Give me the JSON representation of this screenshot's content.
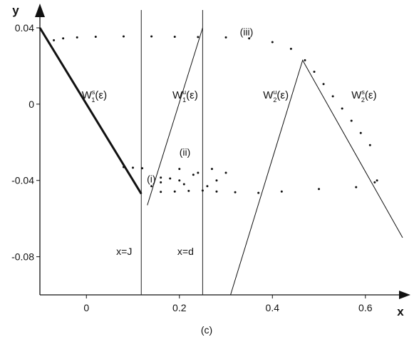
{
  "chart_data": {
    "type": "line",
    "title": "",
    "caption": "(c)",
    "xlabel": "x",
    "ylabel": "y",
    "xlim": [
      -0.1,
      0.68
    ],
    "ylim": [
      -0.1,
      0.04
    ],
    "xticks": [
      0,
      0.2,
      0.4,
      0.6
    ],
    "xtick_labels": [
      "0",
      "0.2",
      "0.4",
      "0.6"
    ],
    "yticks": [
      0.04,
      0,
      -0.04,
      -0.08
    ],
    "ytick_labels": [
      "0.04",
      "0",
      "-0.04",
      "-0.08"
    ],
    "grid": false,
    "vlines": [
      {
        "x": 0.118,
        "label": "x=J"
      },
      {
        "x": 0.25,
        "label": "x=d"
      }
    ],
    "series": [
      {
        "name": "W1s(ε)",
        "style": "line",
        "x": [
          -0.1,
          0.118
        ],
        "y": [
          0.04,
          -0.047
        ]
      },
      {
        "name": "W1u(ε)",
        "style": "line",
        "x": [
          0.131,
          0.25
        ],
        "y": [
          -0.053,
          0.04
        ]
      },
      {
        "name": "W2u(ε)",
        "style": "line",
        "x": [
          0.31,
          0.465,
          0.68
        ],
        "y": [
          -0.1,
          0.023,
          -0.07
        ]
      },
      {
        "name": "W2s(ε)",
        "style": "dots",
        "x": [
          0.47,
          0.49,
          0.51,
          0.53,
          0.55,
          0.57,
          0.59,
          0.61,
          0.625
        ],
        "y": [
          0.023,
          0.017,
          0.0105,
          0.0041,
          -0.0023,
          -0.0087,
          -0.0151,
          -0.0215,
          -0.04
        ]
      },
      {
        "name": "",
        "style": "dots",
        "x": [
          -0.08,
          -0.07,
          -0.05,
          -0.02,
          0.02,
          0.08,
          0.14,
          0.19,
          0.24,
          0.3,
          0.35,
          0.4,
          0.44
        ],
        "y": [
          0.032,
          0.0335,
          0.0345,
          0.035,
          0.0353,
          0.0355,
          0.0355,
          0.0353,
          0.0352,
          0.035,
          0.0345,
          0.0325,
          0.029
        ]
      },
      {
        "name": "",
        "style": "dots",
        "x": [
          0.16,
          0.19,
          0.22,
          0.25,
          0.28,
          0.32,
          0.37,
          0.42,
          0.5,
          0.58,
          0.62
        ],
        "y": [
          -0.046,
          -0.0458,
          -0.0455,
          -0.0453,
          -0.0458,
          -0.0462,
          -0.0465,
          -0.0458,
          -0.0445,
          -0.0435,
          -0.041
        ]
      },
      {
        "name": "",
        "style": "dots",
        "x": [
          0.08,
          0.1,
          0.12,
          0.16,
          0.2,
          0.23,
          0.27,
          0.3,
          0.14,
          0.18,
          0.21,
          0.24,
          0.28,
          0.16,
          0.2,
          0.26
        ],
        "y": [
          -0.033,
          -0.0333,
          -0.0336,
          -0.0385,
          -0.034,
          -0.037,
          -0.034,
          -0.036,
          -0.043,
          -0.039,
          -0.042,
          -0.036,
          -0.04,
          -0.041,
          -0.04,
          -0.043
        ]
      }
    ],
    "annotations": [
      {
        "text": "(i)",
        "x": 0.13,
        "y": -0.041
      },
      {
        "text": "(ii)",
        "x": 0.2,
        "y": -0.027
      },
      {
        "text": "(iii)",
        "x": 0.33,
        "y": 0.036
      }
    ],
    "curve_labels": [
      {
        "main": "W",
        "sub": "1",
        "sup": "s",
        "arg": "(ε)",
        "x": -0.01,
        "y": 0.003
      },
      {
        "main": "W",
        "sub": "1",
        "sup": "u",
        "arg": "(ε)",
        "x": 0.185,
        "y": 0.003
      },
      {
        "main": "W",
        "sub": "2",
        "sup": "u",
        "arg": "(ε)",
        "x": 0.38,
        "y": 0.003
      },
      {
        "main": "W",
        "sub": "2",
        "sup": "s",
        "arg": "(ε)",
        "x": 0.57,
        "y": 0.003
      }
    ]
  }
}
